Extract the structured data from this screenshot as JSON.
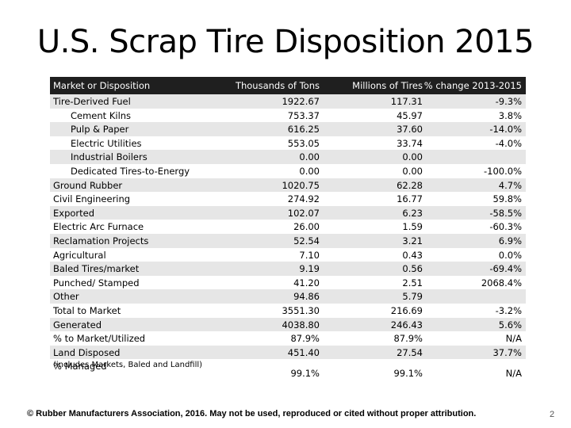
{
  "title": "U.S. Scrap Tire Disposition 2015",
  "table": {
    "headers": [
      "Market or Disposition",
      "Thousands of Tons",
      "Millions of Tires",
      "% change 2013-2015"
    ],
    "rows": [
      {
        "label": "Tire-Derived Fuel",
        "indent": false,
        "tons": "1922.67",
        "tires": "117.31",
        "change": "-9.3%"
      },
      {
        "label": "Cement Kilns",
        "indent": true,
        "tons": "753.37",
        "tires": "45.97",
        "change": "3.8%"
      },
      {
        "label": "Pulp & Paper",
        "indent": true,
        "tons": "616.25",
        "tires": "37.60",
        "change": "-14.0%"
      },
      {
        "label": "Electric Utilities",
        "indent": true,
        "tons": "553.05",
        "tires": "33.74",
        "change": "-4.0%"
      },
      {
        "label": "Industrial Boilers",
        "indent": true,
        "tons": "0.00",
        "tires": "0.00",
        "change": ""
      },
      {
        "label": "Dedicated Tires-to-Energy",
        "indent": true,
        "tons": "0.00",
        "tires": "0.00",
        "change": "-100.0%"
      },
      {
        "label": "Ground Rubber",
        "indent": false,
        "tons": "1020.75",
        "tires": "62.28",
        "change": "4.7%"
      },
      {
        "label": "Civil Engineering",
        "indent": false,
        "tons": "274.92",
        "tires": "16.77",
        "change": "59.8%"
      },
      {
        "label": "Exported",
        "indent": false,
        "tons": "102.07",
        "tires": "6.23",
        "change": "-58.5%"
      },
      {
        "label": "Electric Arc Furnace",
        "indent": false,
        "tons": "26.00",
        "tires": "1.59",
        "change": "-60.3%"
      },
      {
        "label": "Reclamation Projects",
        "indent": false,
        "tons": "52.54",
        "tires": "3.21",
        "change": "6.9%"
      },
      {
        "label": "Agricultural",
        "indent": false,
        "tons": "7.10",
        "tires": "0.43",
        "change": "0.0%"
      },
      {
        "label": "Baled Tires/market",
        "indent": false,
        "tons": "9.19",
        "tires": "0.56",
        "change": "-69.4%"
      },
      {
        "label": "Punched/ Stamped",
        "indent": false,
        "tons": "41.20",
        "tires": "2.51",
        "change": "2068.4%"
      },
      {
        "label": "Other",
        "indent": false,
        "tons": "94.86",
        "tires": "5.79",
        "change": ""
      },
      {
        "label": "Total to Market",
        "indent": false,
        "tons": "3551.30",
        "tires": "216.69",
        "change": "-3.2%"
      },
      {
        "label": "Generated",
        "indent": false,
        "tons": "4038.80",
        "tires": "246.43",
        "change": "5.6%"
      },
      {
        "label": "% to Market/Utilized",
        "indent": false,
        "tons": "87.9%",
        "tires": "87.9%",
        "change": "N/A"
      },
      {
        "label": "Land Disposed",
        "indent": false,
        "tons": "451.40",
        "tires": "27.54",
        "change": "37.7%"
      }
    ],
    "last_row": {
      "label": "% Managed",
      "sublabel": "(includes Markets, Baled and Landfill)",
      "tons": "99.1%",
      "tires": "99.1%",
      "change": "N/A"
    }
  },
  "footer": "© Rubber Manufacturers Association, 2016.  May not be used, reproduced or cited without proper attribution.",
  "page_number": "2",
  "colors": {
    "header_bg": "#1f1f1f",
    "header_text": "#ffffff",
    "row_shade": "#e6e6e6"
  }
}
